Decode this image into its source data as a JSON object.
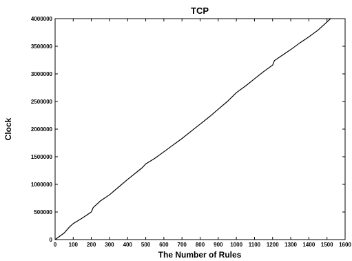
{
  "chart_data": {
    "type": "line",
    "title": "TCP",
    "xlabel": "The Number of Rules",
    "ylabel": "Clock",
    "xlim": [
      0,
      1600
    ],
    "ylim": [
      0,
      4000000
    ],
    "xticks": [
      0,
      100,
      200,
      300,
      400,
      500,
      600,
      700,
      800,
      900,
      1000,
      1100,
      1200,
      1300,
      1400,
      1500,
      1600
    ],
    "yticks": [
      0,
      500000,
      1000000,
      1500000,
      2000000,
      2500000,
      3000000,
      3500000,
      4000000
    ],
    "grid": false,
    "series": [
      {
        "x": [
          0,
          50,
          80,
          100,
          150,
          200,
          210,
          250,
          300,
          350,
          400,
          450,
          480,
          500,
          550,
          600,
          650,
          700,
          750,
          800,
          850,
          900,
          950,
          1000,
          1050,
          1100,
          1150,
          1200,
          1210,
          1250,
          1300,
          1350,
          1400,
          1450,
          1500,
          1520
        ],
        "y": [
          0,
          120000,
          230000,
          290000,
          390000,
          500000,
          580000,
          700000,
          810000,
          950000,
          1090000,
          1220000,
          1300000,
          1370000,
          1470000,
          1590000,
          1710000,
          1830000,
          1960000,
          2090000,
          2220000,
          2360000,
          2500000,
          2660000,
          2780000,
          2910000,
          3040000,
          3160000,
          3240000,
          3330000,
          3440000,
          3560000,
          3670000,
          3790000,
          3940000,
          4000000
        ]
      }
    ]
  }
}
